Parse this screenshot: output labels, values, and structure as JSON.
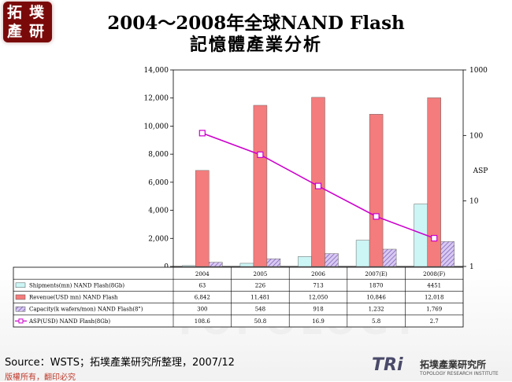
{
  "logo": {
    "line1": "拓",
    "line2": "墣",
    "line3": "產",
    "line4": "研"
  },
  "title": {
    "line1": "2004～2008年全球NAND Flash",
    "line2": "記憶體產業分析"
  },
  "watermark": "TOPOLOGY",
  "source": "Source：WSTS；拓墣產業研究所整理，2007/12",
  "copyright": "版權所有，翻印必究",
  "brand": {
    "tri": "TRi",
    "name": "拓墣產業研究所",
    "sub": "TOPOLOGY RESEARCH INSTITUTE"
  },
  "colors": {
    "shipments": "#ccf5f5",
    "revenue": "#f47c7c",
    "capacity": "#c8b4e8",
    "asp": "#cc00cc"
  },
  "chart_data": {
    "type": "bar",
    "categories": [
      "2004",
      "2005",
      "2006",
      "2007(E)",
      "2008(F)"
    ],
    "series": [
      {
        "name": "Shipments(mn) NAND Flash(8Gb)",
        "type": "bar",
        "axis": "left",
        "values": [
          63,
          226,
          713,
          1870,
          4451
        ],
        "labels": [
          "63",
          "226",
          "713",
          "1870",
          "4451"
        ]
      },
      {
        "name": "Revenue(USD mn) NAND Flash",
        "type": "bar",
        "axis": "left",
        "values": [
          6842,
          11481,
          12050,
          10846,
          12018
        ],
        "labels": [
          "6,842",
          "11,481",
          "12,050",
          "10,846",
          "12,018"
        ]
      },
      {
        "name": "Capacity(k wafers/mon) NAND Flash(8\")",
        "type": "bar",
        "axis": "left",
        "values": [
          300,
          548,
          918,
          1232,
          1769
        ],
        "labels": [
          "300",
          "548",
          "918",
          "1,232",
          "1,769"
        ]
      },
      {
        "name": "ASP(USD) NAND Flash(8Gb)",
        "type": "line",
        "axis": "right",
        "values": [
          108.6,
          50.8,
          16.9,
          5.8,
          2.7
        ],
        "labels": [
          "108.6",
          "50.8",
          "16.9",
          "5.8",
          "2.7"
        ]
      }
    ],
    "ylim": [
      0,
      14000
    ],
    "yticks": [
      "0",
      "2,000",
      "4,000",
      "6,000",
      "8,000",
      "10,000",
      "12,000",
      "14,000"
    ],
    "y2lim": [
      1,
      1000
    ],
    "y2scale": "log",
    "y2ticks": [
      "1",
      "10",
      "100",
      "1000"
    ],
    "y2label": "ASP",
    "grid": false,
    "legend": "data table below chart"
  }
}
